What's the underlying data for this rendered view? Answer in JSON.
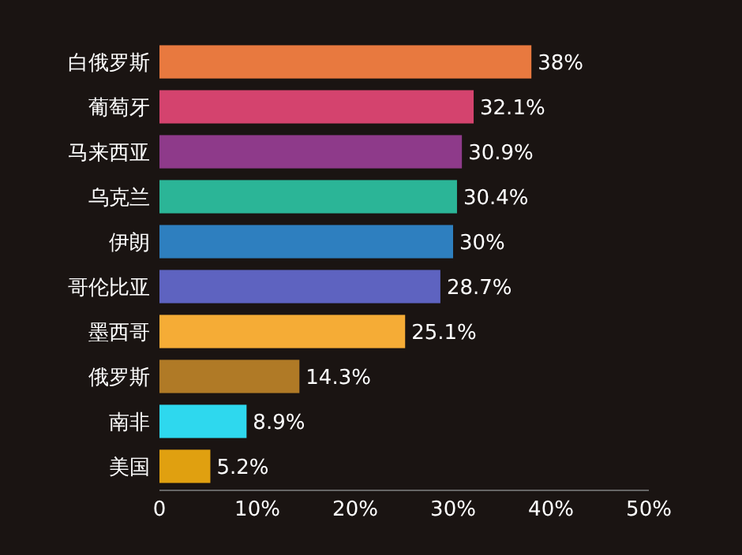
{
  "chart_data": {
    "type": "bar",
    "orientation": "horizontal",
    "categories": [
      "白俄罗斯",
      "葡萄牙",
      "马来西亚",
      "乌克兰",
      "伊朗",
      "哥伦比亚",
      "墨西哥",
      "俄罗斯",
      "南非",
      "美国"
    ],
    "values": [
      38,
      32.1,
      30.9,
      30.4,
      30,
      28.7,
      25.1,
      14.3,
      8.9,
      5.2
    ],
    "value_labels": [
      "38%",
      "32.1%",
      "30.9%",
      "30.4%",
      "30%",
      "28.7%",
      "25.1%",
      "14.3%",
      "8.9%",
      "5.2%"
    ],
    "colors": [
      "#e8793f",
      "#d4436e",
      "#8e3a8a",
      "#2bb597",
      "#2e7fbf",
      "#5e63c0",
      "#f5ac36",
      "#b07a26",
      "#2ed8ee",
      "#e0a010"
    ],
    "xlim": [
      0,
      50
    ],
    "xticks": [
      0,
      {
        "value": 10,
        "label": "10%"
      },
      {
        "value": 20,
        "label": "20%"
      },
      {
        "value": 30,
        "label": "30%"
      },
      {
        "value": 40,
        "label": "40%"
      },
      {
        "value": 50,
        "label": "50%"
      }
    ],
    "grid": false
  }
}
